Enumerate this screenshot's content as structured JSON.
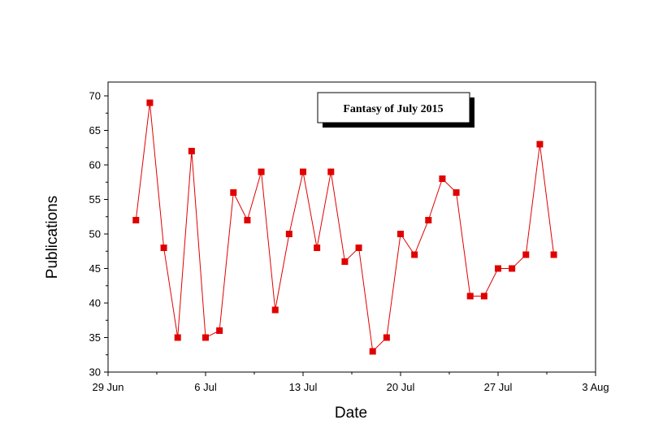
{
  "chart_data": {
    "type": "line",
    "title": "Fantasy of July 2015",
    "xlabel": "Date",
    "ylabel": "Publications",
    "x_tick_labels": [
      "29 Jun",
      "6 Jul",
      "13 Jul",
      "20 Jul",
      "27 Jul",
      "3 Aug"
    ],
    "x_ticks": [
      "2015-06-29",
      "2015-07-06",
      "2015-07-13",
      "2015-07-20",
      "2015-07-27",
      "2015-08-03"
    ],
    "xlim": [
      "2015-06-29",
      "2015-08-03"
    ],
    "ylim": [
      30,
      72
    ],
    "y_ticks": [
      30,
      35,
      40,
      45,
      50,
      55,
      60,
      65,
      70
    ],
    "grid": false,
    "marker_color": "#e00000",
    "line_color": "#e00000",
    "series": [
      {
        "x": [
          "2015-07-01",
          "2015-07-02",
          "2015-07-03",
          "2015-07-04",
          "2015-07-05",
          "2015-07-06",
          "2015-07-07",
          "2015-07-08",
          "2015-07-09",
          "2015-07-10",
          "2015-07-11",
          "2015-07-12",
          "2015-07-13",
          "2015-07-14",
          "2015-07-15",
          "2015-07-16",
          "2015-07-17",
          "2015-07-18",
          "2015-07-19",
          "2015-07-20",
          "2015-07-21",
          "2015-07-22",
          "2015-07-23",
          "2015-07-24",
          "2015-07-25",
          "2015-07-26",
          "2015-07-27",
          "2015-07-28",
          "2015-07-29",
          "2015-07-30",
          "2015-07-31"
        ],
        "values": [
          52,
          69,
          48,
          35,
          62,
          35,
          36,
          56,
          52,
          59,
          39,
          50,
          59,
          48,
          59,
          46,
          48,
          33,
          35,
          50,
          47,
          52,
          58,
          56,
          41,
          41,
          45,
          45,
          47,
          63,
          47
        ]
      }
    ]
  }
}
